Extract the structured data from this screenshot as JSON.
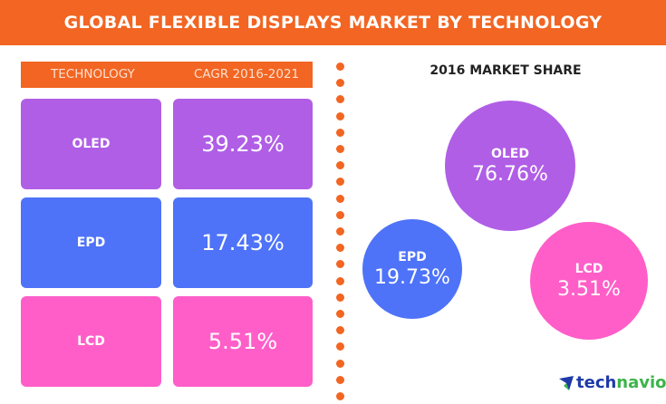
{
  "header": {
    "title": "GLOBAL FLEXIBLE DISPLAYS MARKET BY TECHNOLOGY"
  },
  "table": {
    "headers": [
      "TECHNOLOGY",
      "CAGR 2016-2021"
    ]
  },
  "colors": {
    "accent": "#f26522",
    "OLED": "#b05ee6",
    "EPD": "#4e73f8",
    "LCD": "#ff5ec8"
  },
  "chart_data": [
    {
      "type": "table",
      "columns": [
        "TECHNOLOGY",
        "CAGR 2016-2021"
      ],
      "rows": [
        [
          "OLED",
          "39.23%"
        ],
        [
          "EPD",
          "17.43%"
        ],
        [
          "LCD",
          "5.51%"
        ]
      ],
      "values": [
        39.23,
        17.43,
        5.51
      ]
    },
    {
      "type": "bubble",
      "title": "2016 MARKET SHARE",
      "categories": [
        "OLED",
        "EPD",
        "LCD"
      ],
      "labels": [
        "76.76%",
        "19.73%",
        "3.51%"
      ],
      "values": [
        76.76,
        19.73,
        3.51
      ]
    }
  ],
  "logo": {
    "text_a": "tech",
    "text_b": "navio"
  }
}
